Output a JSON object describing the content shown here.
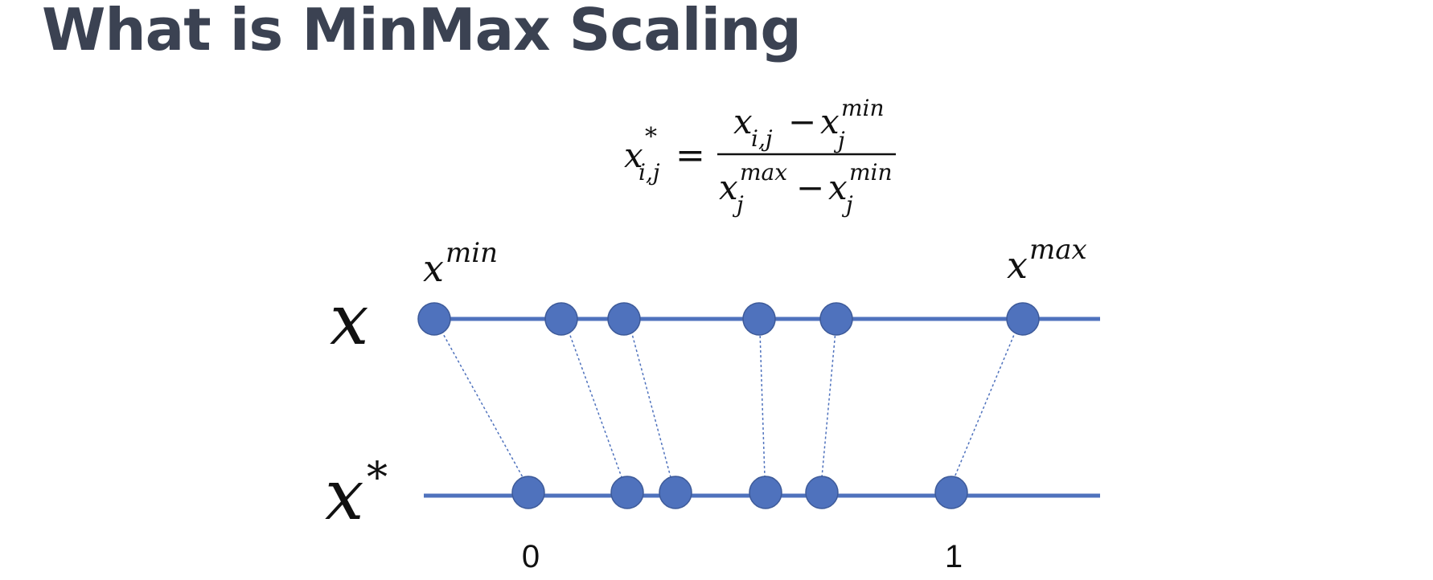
{
  "slide": {
    "title": "What is MinMax Scaling"
  },
  "formula": {
    "lhs_base": "x",
    "lhs_sup": "*",
    "lhs_sub": "i,j",
    "equals": "=",
    "num_a_base": "x",
    "num_a_sub": "i,j",
    "num_minus": "−",
    "num_b_base": "x",
    "num_b_sup": "min",
    "num_b_sub": "j",
    "den_a_base": "x",
    "den_a_sup": "max",
    "den_a_sub": "j",
    "den_minus": "−",
    "den_b_base": "x",
    "den_b_sup": "min",
    "den_b_sub": "j"
  },
  "diagram": {
    "top_axis_label": "x",
    "bottom_axis_label_base": "x",
    "bottom_axis_label_sup": "*",
    "min_label_base": "x",
    "min_label_sup": "min",
    "max_label_base": "x",
    "max_label_sup": "max",
    "tick_zero": "0",
    "tick_one": "1",
    "line_color": "#4f72bd",
    "point_fill": "#4f72bd",
    "point_stroke": "#3d5a99"
  }
}
